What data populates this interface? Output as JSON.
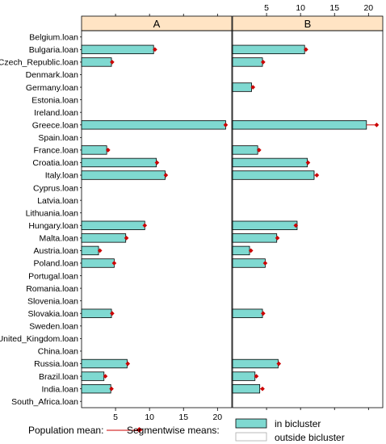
{
  "chart_data": {
    "type": "bar",
    "orientation": "horizontal",
    "categories": [
      "Belgium.loan",
      "Bulgaria.loan",
      "Czech_Republic.loan",
      "Denmark.loan",
      "Germany.loan",
      "Estonia.loan",
      "Ireland.loan",
      "Greece.loan",
      "Spain.loan",
      "France.loan",
      "Croatia.loan",
      "Italy.loan",
      "Cyprus.loan",
      "Latvia.loan",
      "Lithuania.loan",
      "Hungary.loan",
      "Malta.loan",
      "Austria.loan",
      "Poland.loan",
      "Portugal.loan",
      "Romania.loan",
      "Slovenia.loan",
      "Slovakia.loan",
      "Sweden.loan",
      "United_Kingdom.loan",
      "China.loan",
      "Russia.loan",
      "Brazil.loan",
      "India.loan",
      "South_Africa.loan"
    ],
    "xlim": [
      0,
      22.1
    ],
    "xticks": [
      5,
      10,
      15,
      20
    ],
    "panels": [
      {
        "name": "A",
        "segment_means": [
          null,
          10.6,
          4.4,
          null,
          null,
          null,
          null,
          21.2,
          null,
          3.7,
          11.0,
          12.3,
          null,
          null,
          null,
          9.3,
          6.5,
          2.5,
          4.8,
          null,
          null,
          null,
          4.4,
          null,
          null,
          null,
          6.7,
          3.3,
          4.3,
          null
        ],
        "population_means": [
          null,
          10.8,
          4.5,
          null,
          null,
          null,
          null,
          21.2,
          null,
          3.9,
          11.1,
          12.4,
          null,
          null,
          null,
          9.3,
          6.6,
          2.7,
          4.8,
          null,
          null,
          null,
          4.5,
          null,
          null,
          null,
          6.8,
          3.5,
          4.4,
          null
        ]
      },
      {
        "name": "B",
        "segment_means": [
          null,
          10.6,
          4.4,
          null,
          2.8,
          null,
          null,
          19.7,
          null,
          3.7,
          11.0,
          12.0,
          null,
          null,
          null,
          9.5,
          6.5,
          2.5,
          4.8,
          null,
          null,
          null,
          4.4,
          null,
          null,
          null,
          6.7,
          3.3,
          4.0,
          null
        ],
        "population_means": [
          null,
          10.8,
          4.5,
          null,
          3.0,
          null,
          null,
          21.2,
          null,
          3.9,
          11.1,
          12.4,
          null,
          null,
          null,
          9.3,
          6.6,
          2.7,
          4.8,
          null,
          null,
          null,
          4.5,
          null,
          null,
          null,
          6.8,
          3.5,
          4.4,
          null
        ]
      }
    ],
    "colors": {
      "bar_fill": "#7fd9d1",
      "strip_fill": "#ffe4c4",
      "mean_marker": "#cc0000",
      "outside_fill": "#ffffff"
    },
    "grid": false,
    "legend": {
      "population_label": "Population mean:",
      "segment_label": "Segmentwise means:",
      "in_label": "in bicluster",
      "out_label": "outside bicluster",
      "placement": "bottom"
    }
  }
}
